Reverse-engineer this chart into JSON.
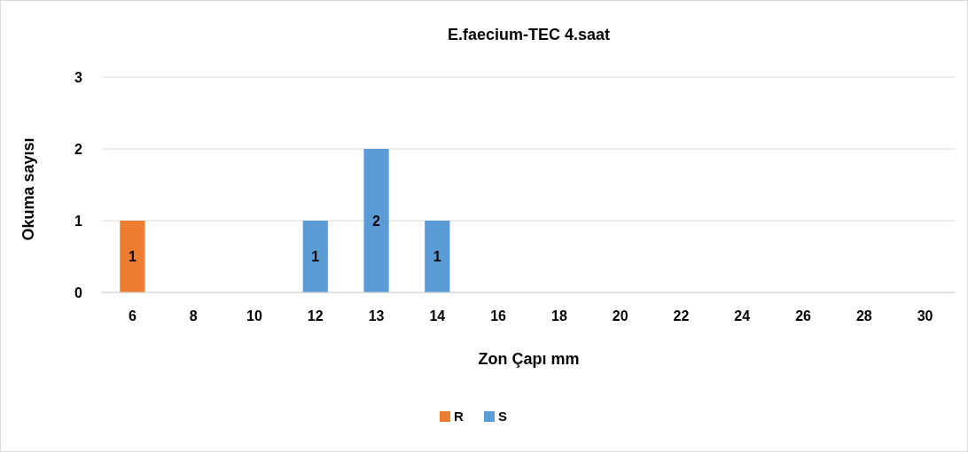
{
  "chart_data": {
    "type": "bar",
    "title": "E.faecium-TEC 4.saat",
    "xlabel": "Zon Çapı mm",
    "ylabel": "Okuma sayısı",
    "categories": [
      "6",
      "8",
      "10",
      "12",
      "13",
      "14",
      "16",
      "18",
      "20",
      "22",
      "24",
      "26",
      "28",
      "30"
    ],
    "series": [
      {
        "name": "R",
        "color": "#ed7d31",
        "values": [
          1,
          null,
          null,
          null,
          null,
          null,
          null,
          null,
          null,
          null,
          null,
          null,
          null,
          null
        ]
      },
      {
        "name": "S",
        "color": "#5b9bd5",
        "values": [
          null,
          null,
          null,
          1,
          2,
          1,
          null,
          null,
          null,
          null,
          null,
          null,
          null,
          null
        ]
      }
    ],
    "stacked": true,
    "ylim": [
      0,
      3
    ],
    "yticks": [
      0,
      1,
      2,
      3
    ],
    "grid": "y",
    "legend": "bottom",
    "data_labels": true
  }
}
